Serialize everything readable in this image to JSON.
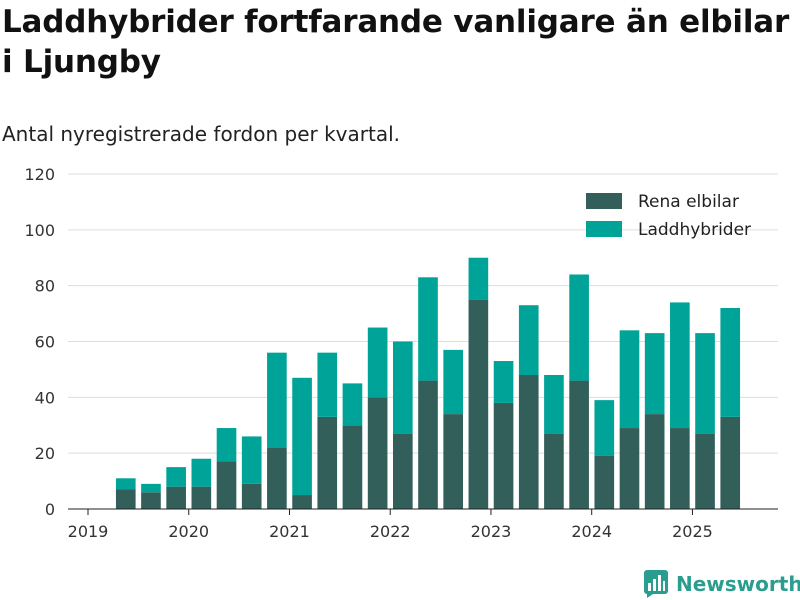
{
  "title": "Laddhybrider fortfarande vanligare än elbilar i Ljungby",
  "subtitle": "Antal nyregistrerade fordon per kvartal.",
  "brand": {
    "name": "Newsworthy",
    "icon": "newsworthy-logo-icon"
  },
  "chart_data": {
    "type": "bar",
    "stacked": true,
    "categories": [
      "2019 Q2",
      "2019 Q3",
      "2019 Q4",
      "2020 Q1",
      "2020 Q2",
      "2020 Q3",
      "2020 Q4",
      "2021 Q1",
      "2021 Q2",
      "2021 Q3",
      "2021 Q4",
      "2022 Q1",
      "2022 Q2",
      "2022 Q3",
      "2022 Q4",
      "2023 Q1",
      "2023 Q2",
      "2023 Q3",
      "2023 Q4",
      "2024 Q1",
      "2024 Q2",
      "2024 Q3",
      "2024 Q4",
      "2025 Q1",
      "2025 Q2"
    ],
    "series": [
      {
        "name": "Rena elbilar",
        "color": "#335f5b",
        "values": [
          7,
          6,
          8,
          8,
          17,
          9,
          22,
          5,
          33,
          30,
          40,
          27,
          46,
          34,
          75,
          38,
          48,
          27,
          46,
          19,
          29,
          34,
          29,
          27,
          33
        ]
      },
      {
        "name": "Laddhybrider",
        "color": "#00a398",
        "values": [
          4,
          3,
          7,
          10,
          12,
          17,
          34,
          42,
          23,
          15,
          25,
          33,
          37,
          23,
          15,
          15,
          25,
          21,
          38,
          20,
          35,
          29,
          45,
          36,
          39
        ]
      }
    ],
    "x_tick_labels": [
      "2019",
      "2020",
      "2021",
      "2022",
      "2023",
      "2024",
      "2025"
    ],
    "y_ticks": [
      0,
      20,
      40,
      60,
      80,
      100,
      120
    ],
    "ylim": [
      0,
      120
    ],
    "grid": true,
    "legend": "top-right"
  }
}
